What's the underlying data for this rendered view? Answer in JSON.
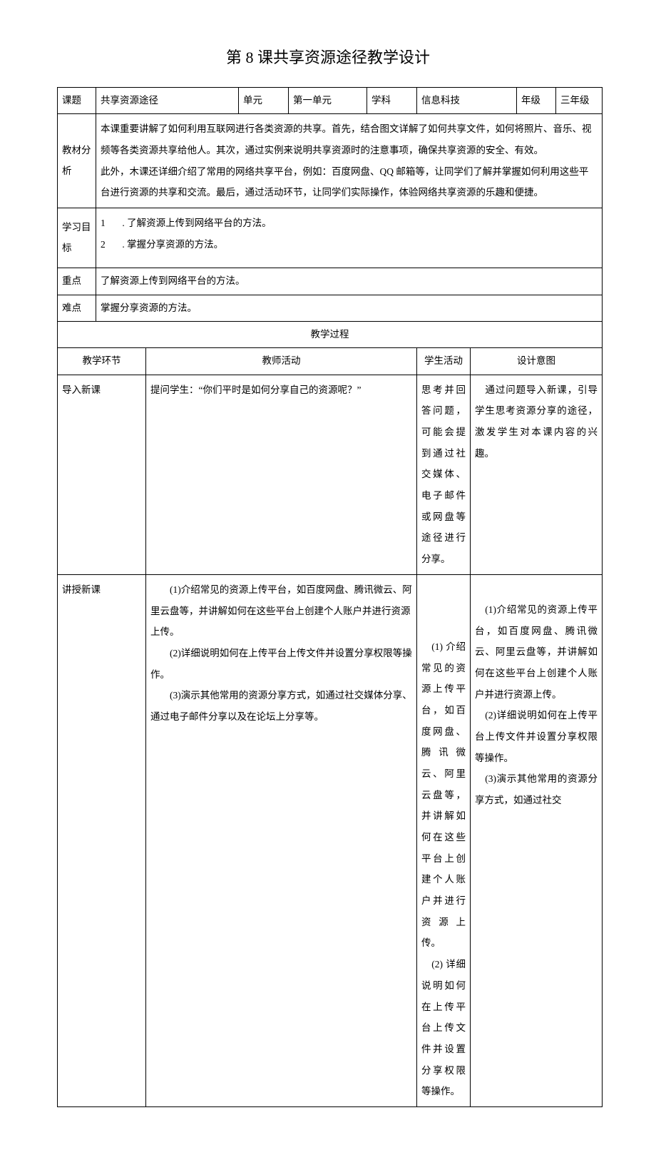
{
  "title": "第 8 课共享资源途径教学设计",
  "header": {
    "labels": {
      "topic": "课题",
      "unit": "单元",
      "subject": "学科",
      "grade": "年级"
    },
    "values": {
      "topic": "共享资源途径",
      "unit": "第一单元",
      "subject": "信息科技",
      "grade": "三年级"
    }
  },
  "analysis": {
    "label": "教材分析",
    "text": "本课重要讲解了如何利用互联网进行各类资源的共享。首先，结合图文详解了如何共享文件，如何将照片、音乐、视频等各类资源共享给他人。其次，通过实例来说明共享资源时的注意事项，确保共享资源的安全、有效。\n此外，木课还详细介绍了常用的网络共享平台，例如：百度网盘、QQ 邮箱等，让同学们了解并掌握如何利用这些平台进行资源的共享和交流。最后，通过活动环节，让同学们实际操作，体验网络共享资源的乐趣和便捷。"
  },
  "goals": {
    "label": "学习目标",
    "items": [
      "1       . 了解资源上传到网络平台的方法。",
      "2       . 掌握分享资源的方法。"
    ]
  },
  "keypoint": {
    "label": "重点",
    "text": "了解资源上传到网络平台的方法。"
  },
  "difficulty": {
    "label": "难点",
    "text": "掌握分享资源的方法。"
  },
  "process": {
    "header": "教学过程",
    "columns": {
      "phase": "教学环节",
      "teacher": "教师活动",
      "student": "学生活动",
      "intent": "设计意图"
    },
    "rows": [
      {
        "phase": "导入新课",
        "teacher": "提问学生：“你们平时是如何分享自己的资源呢？”",
        "student": "思考并回答问题，可能会提到通过社交媒体、电子邮件或网盘等途径进行分享。",
        "intent": "　通过问题导入新课，引导学生思考资源分享的途径，激发学生对本课内容的兴趣。"
      },
      {
        "phase": "讲授新课",
        "teacher_parts": [
          "　　(1)介绍常见的资源上传平台，如百度网盘、腾讯微云、阿里云盘等，并讲解如何在这些平台上创建个人账户并进行资源上传。",
          "　　(2)详细说明如何在上传平台上传文件并设置分享权限等操作。",
          "　　(3)演示其他常用的资源分享方式，如通过社交媒体分享、通过电子邮件分享以及在论坛上分享等。"
        ],
        "student_parts": [
          "　(1) 介绍常见的资源上传平台，如百度网盘、腾讯微云、阿里云盘等，并讲解如何在这些平台上创建个人账户并进行资源上传。",
          "　(2) 详细说明如何在上传平台上传文件并设置分享权限等操作。"
        ],
        "intent_parts": [
          "　(1)介绍常见的资源上传平台，如百度网盘、腾讯微云、阿里云盘等，并讲解如何在这些平台上创建个人账户并进行资源上传。",
          "　(2)详细说明如何在上传平台上传文件并设置分享权限等操作。",
          "　(3)演示其他常用的资源分享方式，如通过社交"
        ]
      }
    ]
  }
}
